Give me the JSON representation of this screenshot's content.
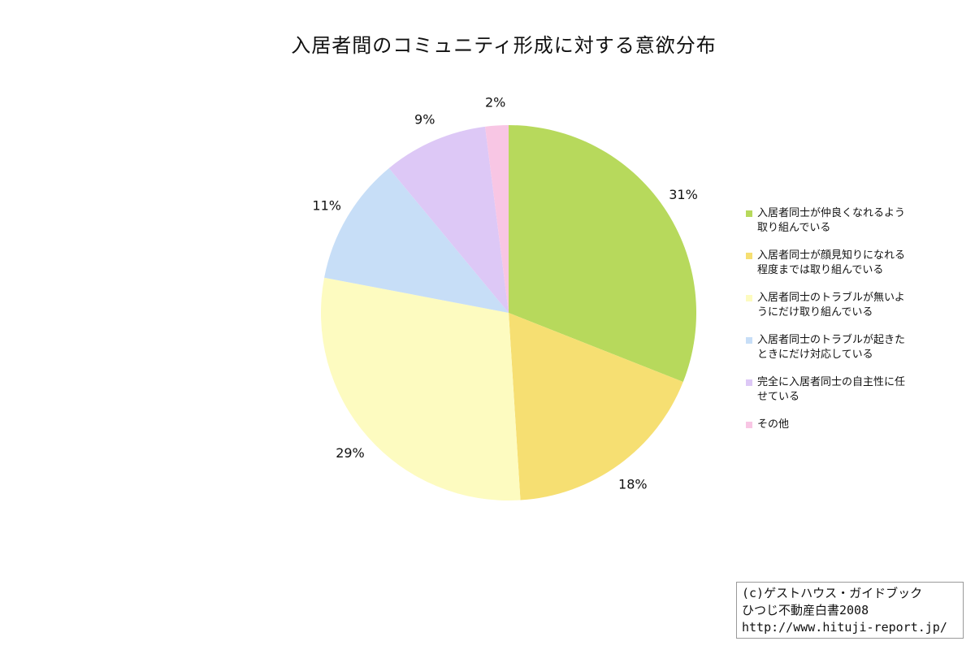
{
  "chart_data": {
    "type": "pie",
    "title": "入居者間のコミュニティ形成に対する意欲分布",
    "start": "top",
    "direction": "clockwise",
    "legend_position": "right",
    "slices": [
      {
        "label": "入居者同士が仲良くなれるよう取り組んでいる",
        "value": 31,
        "display": "31%",
        "color": "#b7d95c"
      },
      {
        "label": "入居者同士が顔見知りになれる程度までは取り組んでいる",
        "value": 18,
        "display": "18%",
        "color": "#f6df72"
      },
      {
        "label": "入居者同士のトラブルが無いようにだけ取り組んでいる",
        "value": 29,
        "display": "29%",
        "color": "#fdfbc0"
      },
      {
        "label": "入居者同士のトラブルが起きたときにだけ対応している",
        "value": 11,
        "display": "11%",
        "color": "#c7def7"
      },
      {
        "label": "完全に入居者同士の自主性に任せている",
        "value": 9,
        "display": "9%",
        "color": "#ddc8f6"
      },
      {
        "label": "その他",
        "value": 2,
        "display": "2%",
        "color": "#f8c6e4"
      }
    ]
  },
  "legend": {
    "items": [
      {
        "line1": "入居者同士が仲良くなれるよう",
        "line2": "取り組んでいる"
      },
      {
        "line1": "入居者同士が顔見知りになれる",
        "line2": "程度までは取り組んでいる"
      },
      {
        "line1": "入居者同士のトラブルが無いよ",
        "line2": "うにだけ取り組んでいる"
      },
      {
        "line1": "入居者同士のトラブルが起きた",
        "line2": "ときにだけ対応している"
      },
      {
        "line1": "完全に入居者同士の自主性に任",
        "line2": "せている"
      },
      {
        "line1": "その他",
        "line2": ""
      }
    ]
  },
  "credit": {
    "line1": "(c)ゲストハウス・ガイドブック",
    "line2": "ひつじ不動産白書2008",
    "line3": "http://www.hituji-report.jp/"
  }
}
